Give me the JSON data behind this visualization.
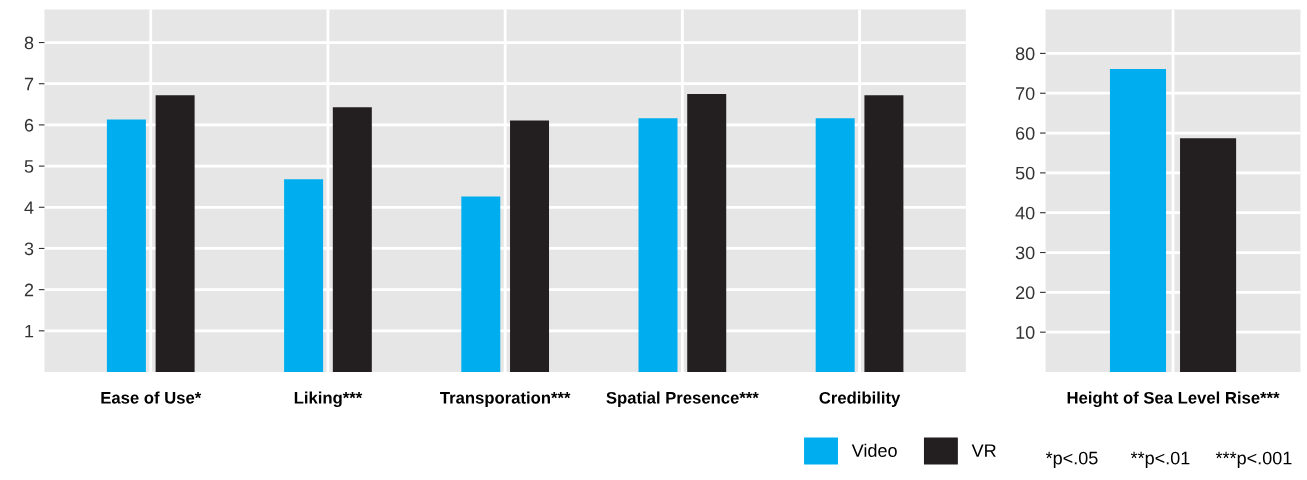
{
  "chart_data": [
    {
      "type": "bar",
      "categories": [
        "Ease of Use*",
        "Liking***",
        "Transporation***",
        "Spatial Presence***",
        "Credibility"
      ],
      "series": [
        {
          "name": "Video",
          "color": "#00aeef",
          "values": [
            6.13,
            4.68,
            4.26,
            6.16,
            6.16
          ]
        },
        {
          "name": "VR",
          "color": "#231f20",
          "values": [
            6.72,
            6.43,
            6.11,
            6.75,
            6.72
          ]
        }
      ],
      "ylim": [
        0,
        8.8
      ],
      "yticks": [
        1,
        2,
        3,
        4,
        5,
        6,
        7,
        8
      ],
      "grid": true,
      "legend": "bottom right"
    },
    {
      "type": "bar",
      "categories": [
        "Height of Sea Level Rise***"
      ],
      "series": [
        {
          "color": "#00aeef",
          "values": [
            76.1
          ]
        },
        {
          "color": "#231f20",
          "values": [
            58.7
          ]
        }
      ],
      "ylim": [
        0,
        91
      ],
      "yticks": [
        10,
        20,
        30,
        40,
        50,
        60,
        70,
        80
      ],
      "grid": true,
      "annotations": [
        "*p<.05",
        "**p<.01",
        "***p<.001"
      ]
    }
  ]
}
